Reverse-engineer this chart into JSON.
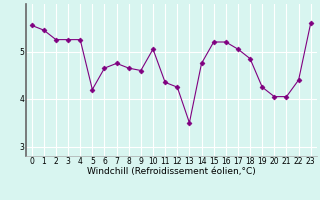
{
  "x": [
    0,
    1,
    2,
    3,
    4,
    5,
    6,
    7,
    8,
    9,
    10,
    11,
    12,
    13,
    14,
    15,
    16,
    17,
    18,
    19,
    20,
    21,
    22,
    23
  ],
  "y": [
    5.55,
    5.45,
    5.25,
    5.25,
    5.25,
    4.2,
    4.65,
    4.75,
    4.65,
    4.6,
    5.05,
    4.35,
    4.25,
    3.5,
    4.75,
    5.2,
    5.2,
    5.05,
    4.85,
    4.25,
    4.05,
    4.05,
    4.4,
    5.6
  ],
  "line_color": "#800080",
  "marker": "D",
  "marker_size": 2.5,
  "bg_color": "#d8f5f0",
  "grid_color": "#ffffff",
  "xlabel": "Windchill (Refroidissement éolien,°C)",
  "xlabel_fontsize": 6.5,
  "tick_fontsize": 5.5,
  "ylim": [
    2.8,
    6.0
  ],
  "yticks": [
    3,
    4,
    5
  ],
  "xlim": [
    -0.5,
    23.5
  ],
  "spine_color": "#aaaaaa",
  "left_spine_color": "#666666"
}
